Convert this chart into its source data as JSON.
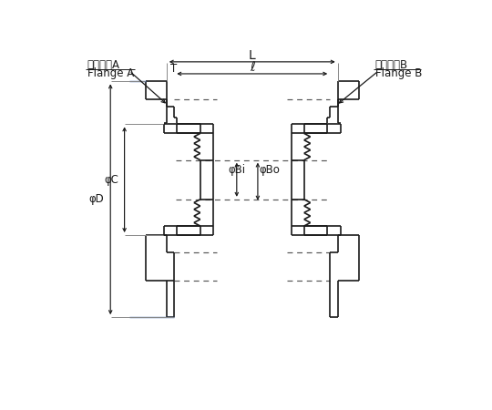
{
  "bg_color": "#ffffff",
  "line_color": "#1a1a1a",
  "blue_color": "#4169aa",
  "dash_color": "#555555",
  "fig_width": 5.4,
  "fig_height": 4.5,
  "labels": {
    "flange_A_jp": "フランジA",
    "flange_A_en": "Flange A",
    "flange_B_jp": "フランジB",
    "flange_B_en": "Flange B",
    "L": "L",
    "ell": "ℓ",
    "T": "T",
    "phi_D": "φD",
    "phi_C": "φC",
    "phi_Bi": "φBi",
    "phi_Bo": "φBo"
  }
}
